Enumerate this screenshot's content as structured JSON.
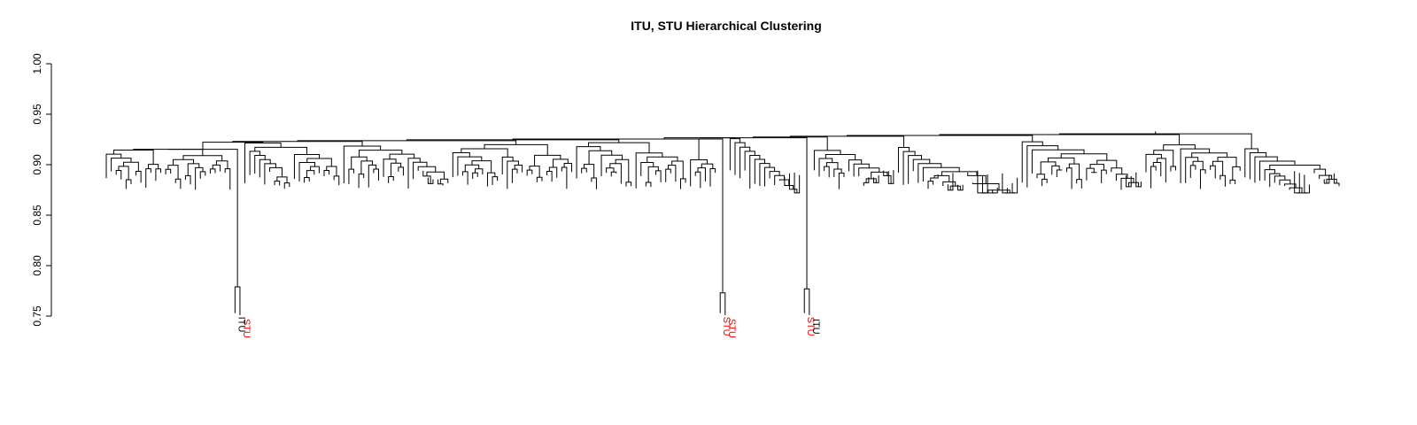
{
  "chart_data": {
    "type": "dendrogram",
    "title": "ITU, STU Hierarchical Clustering",
    "ylim": [
      0.75,
      1.0
    ],
    "yticks": [
      0.75,
      0.8,
      0.85,
      0.9,
      0.95,
      1.0
    ],
    "ytick_labels": [
      "0.75",
      "0.80",
      "0.85",
      "0.90",
      "0.95",
      "1.00"
    ],
    "class_colors": {
      "ITU": "#000000",
      "STU": "#ff0000"
    },
    "leaf_label_count": 6,
    "leaves": [
      {
        "label": "ITU",
        "cls": "ITU"
      },
      {
        "label": "STU",
        "cls": "STU"
      },
      {
        "label": "STU",
        "cls": "STU"
      },
      {
        "label": "STU",
        "cls": "STU"
      },
      {
        "label": "STU",
        "cls": "STU"
      },
      {
        "label": "ITU",
        "cls": "ITU"
      }
    ],
    "outlier_branches": [
      {
        "position": "left",
        "leaves": [
          "ITU",
          "STU"
        ],
        "label_visible": "ITU",
        "height": 0.9,
        "pair_height": 0.779
      },
      {
        "position": "center",
        "leaves": [
          "STU",
          "STU"
        ],
        "height": 0.925,
        "pair_height": 0.773
      },
      {
        "position": "center-right",
        "leaves": [
          "STU",
          "STU"
        ],
        "height": 0.925,
        "pair_height": 0.777
      }
    ],
    "root_height": 0.933
  }
}
